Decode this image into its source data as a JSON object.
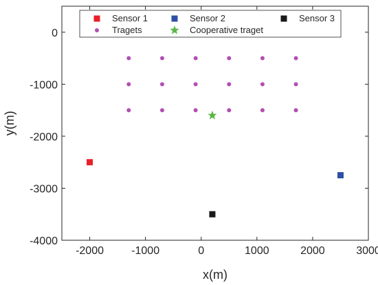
{
  "chart_data": {
    "type": "scatter",
    "title": "",
    "xlabel": "x(m)",
    "ylabel": "y(m)",
    "xlim": [
      -2500,
      3000
    ],
    "ylim": [
      -4000,
      500
    ],
    "xticks": [
      -2000,
      -1000,
      0,
      1000,
      2000,
      3000
    ],
    "yticks": [
      0,
      -1000,
      -2000,
      -3000,
      -4000
    ],
    "grid": false,
    "legend_position": "top",
    "series": [
      {
        "name": "Sensor 1",
        "marker": "square",
        "color": "#e8202a",
        "points": [
          {
            "x": -2000,
            "y": -2500
          }
        ]
      },
      {
        "name": "Sensor 2",
        "marker": "square",
        "color": "#2e4fa3",
        "points": [
          {
            "x": 2500,
            "y": -2750
          }
        ]
      },
      {
        "name": "Sensor 3",
        "marker": "square",
        "color": "#1a1a1a",
        "points": [
          {
            "x": 200,
            "y": -3500
          }
        ]
      },
      {
        "name": "Tragets",
        "marker": "circle",
        "color": "#b24fb2",
        "points": [
          {
            "x": -1300,
            "y": -500
          },
          {
            "x": -700,
            "y": -500
          },
          {
            "x": -100,
            "y": -500
          },
          {
            "x": 500,
            "y": -500
          },
          {
            "x": 1100,
            "y": -500
          },
          {
            "x": 1700,
            "y": -500
          },
          {
            "x": -1300,
            "y": -1000
          },
          {
            "x": -700,
            "y": -1000
          },
          {
            "x": -100,
            "y": -1000
          },
          {
            "x": 500,
            "y": -1000
          },
          {
            "x": 1100,
            "y": -1000
          },
          {
            "x": 1700,
            "y": -1000
          },
          {
            "x": -1300,
            "y": -1500
          },
          {
            "x": -700,
            "y": -1500
          },
          {
            "x": -100,
            "y": -1500
          },
          {
            "x": 500,
            "y": -1500
          },
          {
            "x": 1100,
            "y": -1500
          },
          {
            "x": 1700,
            "y": -1500
          }
        ]
      },
      {
        "name": "Cooperative traget",
        "marker": "star",
        "color": "#5ab646",
        "points": [
          {
            "x": 200,
            "y": -1600
          }
        ]
      }
    ]
  }
}
